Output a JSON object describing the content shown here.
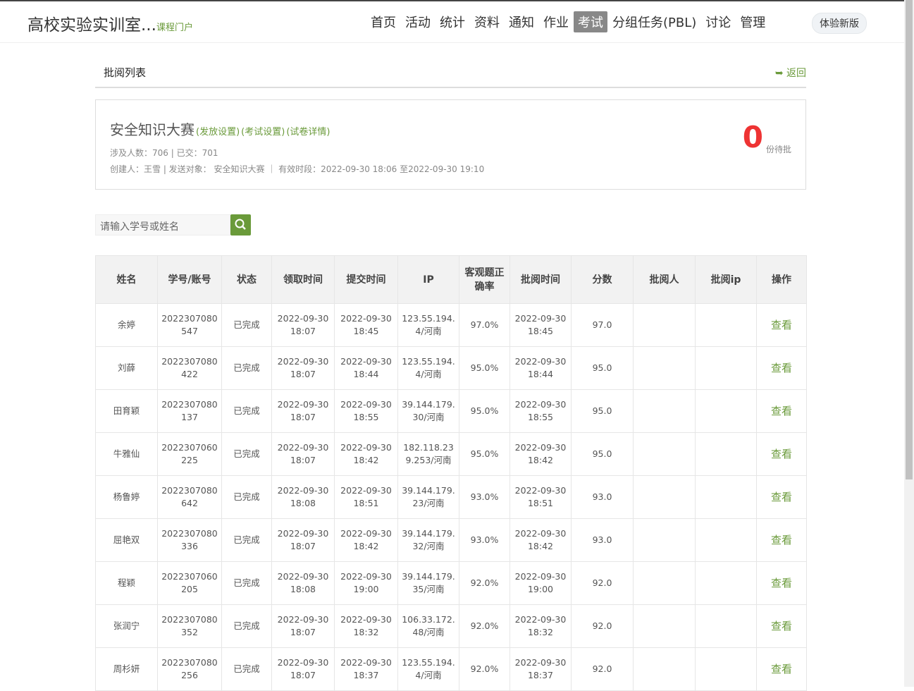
{
  "header": {
    "title": "高校实验实训室...",
    "subtitle": "课程门户",
    "nav": [
      "首页",
      "活动",
      "统计",
      "资料",
      "通知",
      "作业",
      "考试",
      "分组任务(PBL)",
      "讨论",
      "管理"
    ],
    "active": 6,
    "new_version": "体验新版"
  },
  "section": {
    "title": "批阅列表",
    "back": "返回"
  },
  "exam": {
    "name": "安全知识大赛",
    "links": [
      "(发放设置)",
      "(考试设置)",
      "(试卷详情)"
    ],
    "stats": "涉及人数：706 | 已交：701",
    "meta": "创建人：王雪 | 发送对象： 安全知识大赛 ｜ 有效时段：2022-09-30 18:06 至2022-09-30 19:10",
    "pending": 0,
    "pending_label": "份待批"
  },
  "search": {
    "placeholder": "请输入学号或姓名"
  },
  "table": {
    "columns": [
      "姓名",
      "学号/账号",
      "状态",
      "领取时间",
      "提交时间",
      "IP",
      "客观题正确率",
      "批阅时间",
      "分数",
      "批阅人",
      "批阅ip",
      "操作"
    ],
    "rows": [
      {
        "name": "余婷",
        "id": "2022307080547",
        "status": "已完成",
        "start": "2022-09-30 18:07",
        "submit": "2022-09-30 18:45",
        "ip": "123.55.194.4/河南",
        "rate": "97.0%",
        "review_time": "2022-09-30 18:45",
        "score": "97.0",
        "action": "查看"
      },
      {
        "name": "刘薛",
        "id": "2022307080422",
        "status": "已完成",
        "start": "2022-09-30 18:07",
        "submit": "2022-09-30 18:44",
        "ip": "123.55.194.4/河南",
        "rate": "95.0%",
        "review_time": "2022-09-30 18:44",
        "score": "95.0",
        "action": "查看"
      },
      {
        "name": "田育颖",
        "id": "2022307080137",
        "status": "已完成",
        "start": "2022-09-30 18:07",
        "submit": "2022-09-30 18:55",
        "ip": "39.144.179.30/河南",
        "rate": "95.0%",
        "review_time": "2022-09-30 18:55",
        "score": "95.0",
        "action": "查看"
      },
      {
        "name": "牛雅仙",
        "id": "2022307060225",
        "status": "已完成",
        "start": "2022-09-30 18:07",
        "submit": "2022-09-30 18:42",
        "ip": "182.118.239.253/河南",
        "rate": "95.0%",
        "review_time": "2022-09-30 18:42",
        "score": "95.0",
        "action": "查看"
      },
      {
        "name": "杨鲁婷",
        "id": "2022307080642",
        "status": "已完成",
        "start": "2022-09-30 18:08",
        "submit": "2022-09-30 18:51",
        "ip": "39.144.179.23/河南",
        "rate": "93.0%",
        "review_time": "2022-09-30 18:51",
        "score": "93.0",
        "action": "查看"
      },
      {
        "name": "屈艳双",
        "id": "2022307080336",
        "status": "已完成",
        "start": "2022-09-30 18:07",
        "submit": "2022-09-30 18:42",
        "ip": "39.144.179.32/河南",
        "rate": "93.0%",
        "review_time": "2022-09-30 18:42",
        "score": "93.0",
        "action": "查看"
      },
      {
        "name": "程颖",
        "id": "2022307060205",
        "status": "已完成",
        "start": "2022-09-30 18:08",
        "submit": "2022-09-30 19:00",
        "ip": "39.144.179.35/河南",
        "rate": "92.0%",
        "review_time": "2022-09-30 19:00",
        "score": "92.0",
        "action": "查看"
      },
      {
        "name": "张润宁",
        "id": "2022307080352",
        "status": "已完成",
        "start": "2022-09-30 18:07",
        "submit": "2022-09-30 18:32",
        "ip": "106.33.172.48/河南",
        "rate": "92.0%",
        "review_time": "2022-09-30 18:32",
        "score": "92.0",
        "action": "查看"
      },
      {
        "name": "周杉妍",
        "id": "2022307080256",
        "status": "已完成",
        "start": "2022-09-30 18:07",
        "submit": "2022-09-30 18:37",
        "ip": "123.55.194.4/河南",
        "rate": "92.0%",
        "review_time": "2022-09-30 18:37",
        "score": "92.0",
        "action": "查看"
      }
    ]
  }
}
